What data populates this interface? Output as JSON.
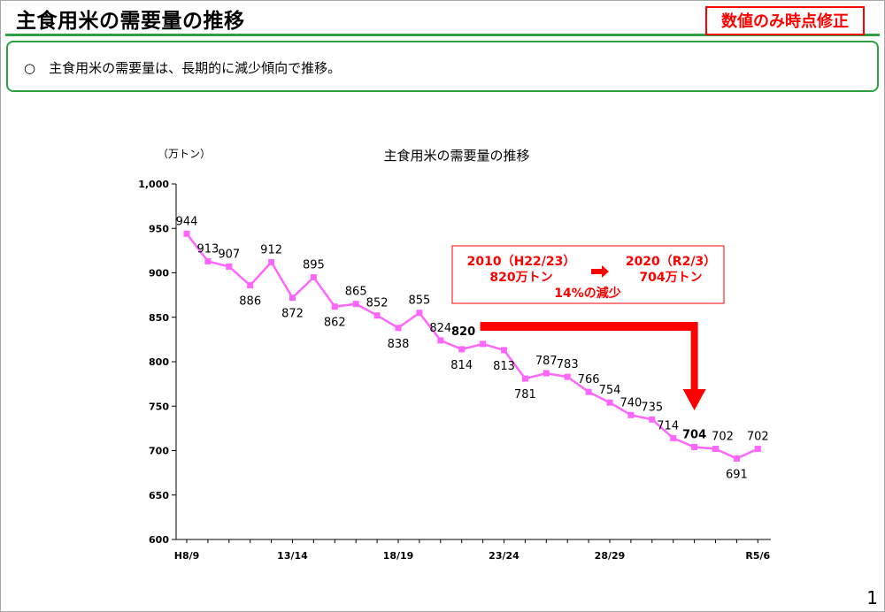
{
  "header": {
    "title": "主食用米の需要量の推移",
    "badge": "数値のみ時点修正"
  },
  "summary": {
    "text": "○　主食用米の需要量は、長期的に減少傾向で推移。"
  },
  "page_number": "1",
  "colors": {
    "accent_green": "#2ea043",
    "series": "#ff66ff",
    "callout_red": "#ff0000"
  },
  "chart_data": {
    "type": "line",
    "title": "主食用米の需要量の推移",
    "unit_label": "（万トン）",
    "ylim": [
      600,
      1000
    ],
    "y_ticks": [
      {
        "value": 1000,
        "label": "1,000"
      },
      {
        "value": 950,
        "label": "950"
      },
      {
        "value": 900,
        "label": "900"
      },
      {
        "value": 850,
        "label": "850"
      },
      {
        "value": 800,
        "label": "800"
      },
      {
        "value": 750,
        "label": "750"
      },
      {
        "value": 700,
        "label": "700"
      },
      {
        "value": 650,
        "label": "650"
      },
      {
        "value": 600,
        "label": "600"
      }
    ],
    "x_tick_labels": [
      {
        "index": 0,
        "label": "H8/9"
      },
      {
        "index": 5,
        "label": "13/14"
      },
      {
        "index": 10,
        "label": "18/19"
      },
      {
        "index": 15,
        "label": "23/24"
      },
      {
        "index": 20,
        "label": "28/29"
      },
      {
        "index": 27,
        "label": "R5/6"
      }
    ],
    "grid": false,
    "series": [
      {
        "values": [
          944,
          913,
          907,
          886,
          912,
          872,
          895,
          862,
          865,
          852,
          838,
          855,
          824,
          814,
          820,
          813,
          781,
          787,
          783,
          766,
          754,
          740,
          735,
          714,
          704,
          702,
          691,
          702
        ],
        "labels": [
          "944",
          "913",
          "907",
          "886",
          "912",
          "872",
          "895",
          "862",
          "865",
          "852",
          "838",
          "855",
          "824",
          "814",
          "820",
          "813",
          "781",
          "787",
          "783",
          "766",
          "754",
          "740",
          "735",
          "714",
          "704",
          "702",
          "691",
          "702"
        ]
      }
    ],
    "highlight_indices": [
      14,
      24
    ],
    "callout": {
      "left_line1": "2010（H22/23）",
      "left_line2": "820万トン",
      "right_line1": "2020（R2/3）",
      "right_line2": "704万トン",
      "summary": "14%の減少",
      "from_index": 14,
      "to_index": 24
    }
  }
}
